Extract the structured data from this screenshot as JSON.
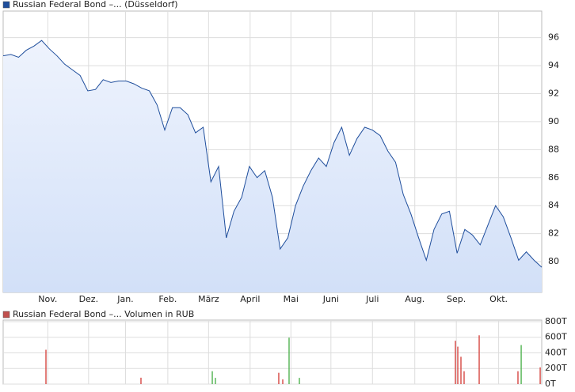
{
  "chart_data": [
    {
      "type": "line",
      "fill": true,
      "grid": true,
      "xlim": [
        0,
        70
      ],
      "ylim": [
        77.8,
        97.9
      ],
      "xticks": [
        {
          "value": 5.8,
          "label": "Nov."
        },
        {
          "value": 11.1,
          "label": "Dez."
        },
        {
          "value": 15.9,
          "label": "Jan."
        },
        {
          "value": 21.4,
          "label": "Feb."
        },
        {
          "value": 26.7,
          "label": "März"
        },
        {
          "value": 32.1,
          "label": "April"
        },
        {
          "value": 37.4,
          "label": "Mai"
        },
        {
          "value": 42.6,
          "label": "Juni"
        },
        {
          "value": 48.0,
          "label": "Juli"
        },
        {
          "value": 53.5,
          "label": "Aug."
        },
        {
          "value": 58.9,
          "label": "Sep."
        },
        {
          "value": 64.4,
          "label": "Okt."
        }
      ],
      "yticks": [
        80,
        82,
        84,
        86,
        88,
        90,
        92,
        94,
        96
      ],
      "series": [
        {
          "name": "Russian Federal Bond –... (Düsseldorf)",
          "color": "#1f4e9c",
          "x": [
            0,
            1,
            2,
            3,
            4,
            5,
            6,
            7,
            8,
            9,
            10,
            11,
            12,
            13,
            14,
            15,
            16,
            17,
            18,
            19,
            20,
            21,
            22,
            23,
            24,
            25,
            26,
            27,
            28,
            29,
            30,
            31,
            32,
            33,
            34,
            35,
            36,
            37,
            38,
            39,
            40,
            41,
            42,
            43,
            44,
            45,
            46,
            47,
            48,
            49,
            50,
            51,
            52,
            53,
            54,
            55,
            56,
            57,
            58,
            59,
            60,
            61,
            62,
            63,
            64,
            65,
            66,
            67,
            68,
            69,
            70
          ],
          "values": [
            94.7,
            94.8,
            94.6,
            95.1,
            95.4,
            95.8,
            95.2,
            94.7,
            94.1,
            93.7,
            93.3,
            92.2,
            92.3,
            93.0,
            92.8,
            92.9,
            92.9,
            92.7,
            92.4,
            92.2,
            91.2,
            89.4,
            91.0,
            91.0,
            90.5,
            89.2,
            89.6,
            85.7,
            86.8,
            81.7,
            83.6,
            84.6,
            86.8,
            86.0,
            86.5,
            84.6,
            80.9,
            81.7,
            84.0,
            85.4,
            86.5,
            87.4,
            86.8,
            88.5,
            89.6,
            87.6,
            88.8,
            89.6,
            89.4,
            89.0,
            87.9,
            87.1,
            84.8,
            83.4,
            81.7,
            80.1,
            82.3,
            83.4,
            83.6,
            80.6,
            82.3,
            81.9,
            81.2,
            82.6,
            84.0,
            83.2,
            81.7,
            80.1,
            80.7,
            80.1,
            79.6
          ]
        }
      ]
    },
    {
      "type": "bar",
      "grid": true,
      "xlim": [
        0,
        70
      ],
      "ylim": [
        0,
        820
      ],
      "yticks": [
        {
          "value": 0,
          "label": "0T"
        },
        {
          "value": 200,
          "label": "200T"
        },
        {
          "value": 400,
          "label": "400T"
        },
        {
          "value": 600,
          "label": "600T"
        },
        {
          "value": 800,
          "label": "800T"
        }
      ],
      "series": [
        {
          "name": "Russian Federal Bond –... Volumen in RUB",
          "color": "#c0504d",
          "x": [
            5.56,
            17.91,
            27.18,
            27.59,
            35.82,
            36.34,
            37.16,
            38.5,
            58.78,
            59.09,
            59.5,
            59.91,
            61.87,
            66.91,
            67.33,
            69.8
          ],
          "values": [
            440,
            82,
            165,
            80,
            145,
            60,
            595,
            80,
            555,
            480,
            350,
            165,
            625,
            165,
            500,
            215
          ],
          "colors": [
            "#d9534f",
            "#d9534f",
            "#5cb85c",
            "#5cb85c",
            "#d9534f",
            "#d9534f",
            "#5cb85c",
            "#5cb85c",
            "#d9534f",
            "#d9534f",
            "#d9534f",
            "#d9534f",
            "#d9534f",
            "#d9534f",
            "#5cb85c",
            "#d9534f"
          ]
        }
      ]
    }
  ]
}
